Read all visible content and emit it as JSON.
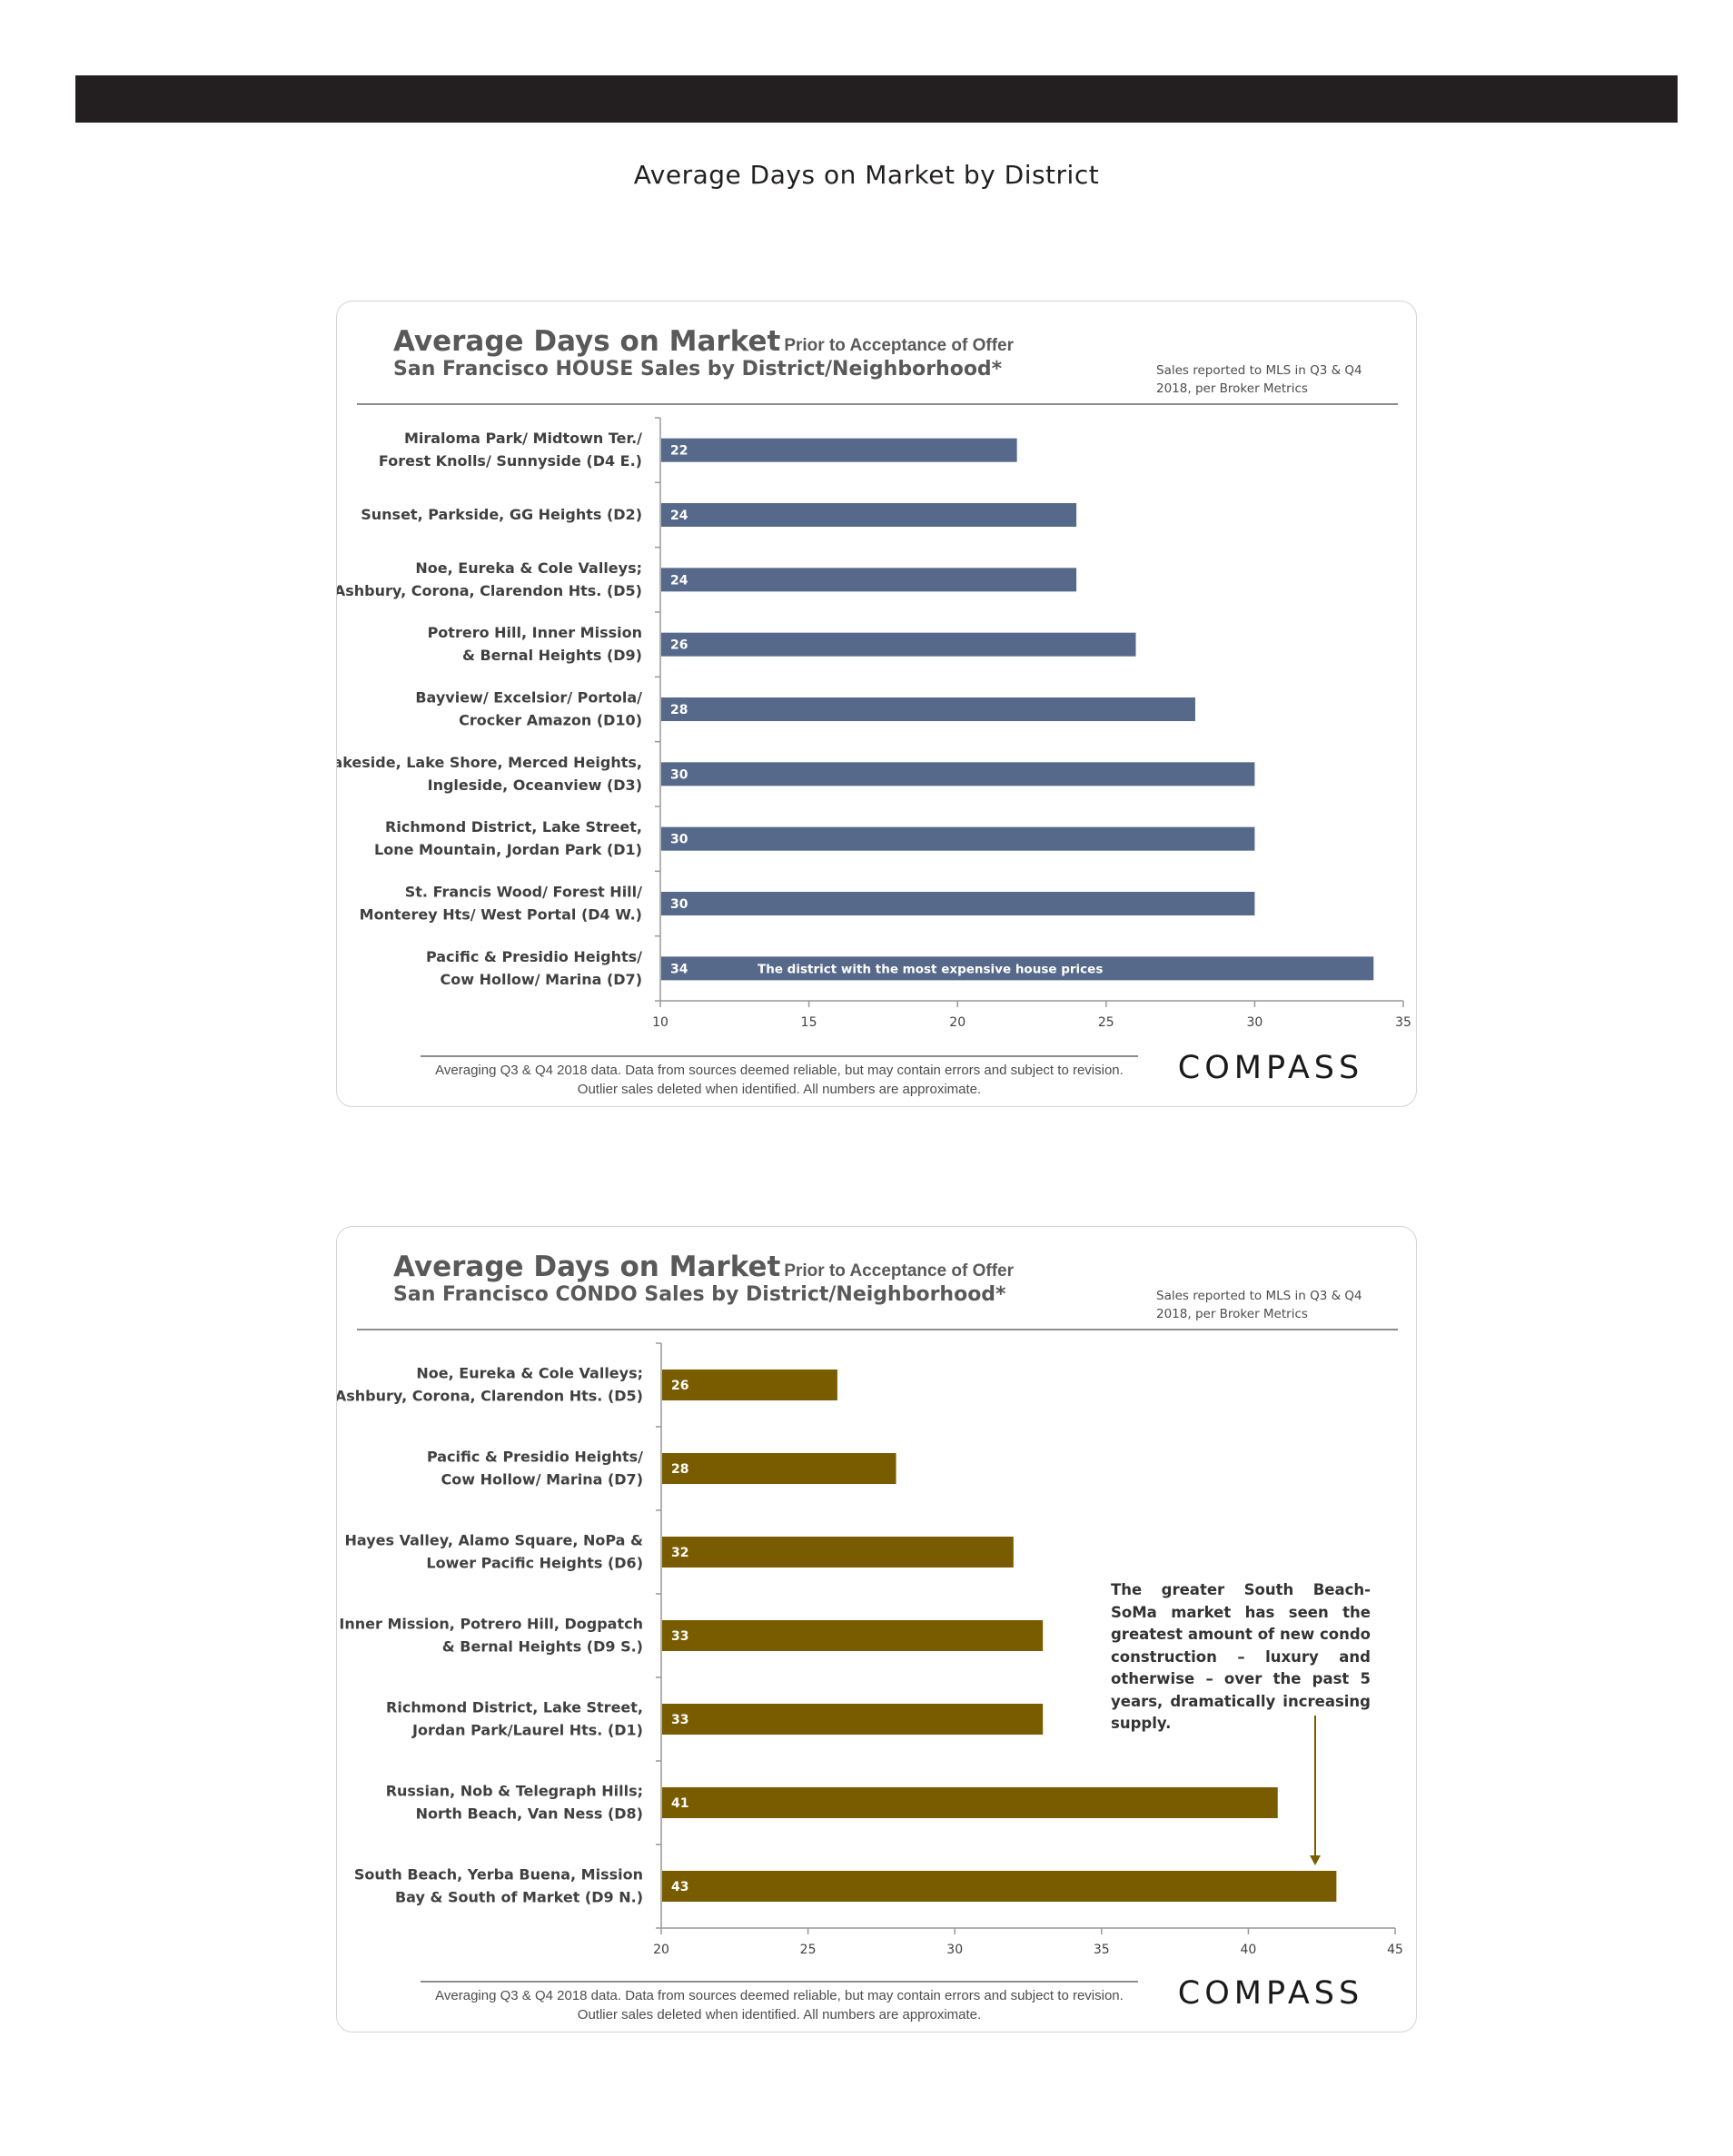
{
  "page": {
    "title": "Average Days on Market by District"
  },
  "colors": {
    "house_bar": "#56698a",
    "condo_bar": "#7a5c00",
    "axis": "#999999",
    "arrow": "#7a5c00"
  },
  "chart_data": [
    {
      "type": "bar",
      "orientation": "horizontal",
      "title": "Average Days on Market",
      "title_suffix": "Prior to Acceptance of Offer",
      "subtitle": "San Francisco HOUSE Sales by District/Neighborhood*",
      "source_note": "Sales reported to MLS in Q3 & Q4 2018, per Broker Metrics",
      "xlim": [
        10,
        35
      ],
      "x_ticks": [
        10,
        15,
        20,
        25,
        30,
        35
      ],
      "grid": false,
      "categories": [
        [
          "Miraloma Park/ Midtown Ter./",
          "Forest Knolls/ Sunnyside (D4 E.)"
        ],
        [
          "Sunset, Parkside, GG Heights (D2)"
        ],
        [
          "Noe, Eureka & Cole Valleys;",
          "Ashbury, Corona, Clarendon Hts. (D5)"
        ],
        [
          "Potrero Hill, Inner Mission",
          "& Bernal Heights (D9)"
        ],
        [
          "Bayview/ Excelsior/ Portola/",
          "Crocker Amazon (D10)"
        ],
        [
          "Lakeside, Lake Shore, Merced Heights,",
          "Ingleside, Oceanview (D3)"
        ],
        [
          "Richmond District, Lake Street,",
          "Lone Mountain, Jordan Park (D1)"
        ],
        [
          "St. Francis Wood/ Forest Hill/",
          "Monterey Hts/ West Portal (D4 W.)"
        ],
        [
          "Pacific & Presidio Heights/",
          "Cow Hollow/ Marina (D7)"
        ]
      ],
      "values": [
        22,
        24,
        24,
        26,
        28,
        30,
        30,
        30,
        34
      ],
      "annotations": [
        {
          "category_index": 8,
          "text": "The district with the most expensive house prices"
        }
      ],
      "footer": "Averaging Q3 & Q4 2018 data. Data from sources deemed reliable, but may contain errors and subject to revision. Outlier sales deleted when identified. All numbers are approximate.",
      "brand": "COMPASS"
    },
    {
      "type": "bar",
      "orientation": "horizontal",
      "title": "Average Days on Market",
      "title_suffix": "Prior to Acceptance of Offer",
      "subtitle": "San Francisco CONDO Sales by District/Neighborhood*",
      "source_note": "Sales reported to MLS in Q3 & Q4 2018, per Broker Metrics",
      "xlim": [
        20,
        45
      ],
      "x_ticks": [
        20,
        25,
        30,
        35,
        40,
        45
      ],
      "grid": false,
      "categories": [
        [
          "Noe, Eureka & Cole Valleys;",
          "Ashbury, Corona, Clarendon Hts. (D5)"
        ],
        [
          "Pacific & Presidio Heights/",
          "Cow Hollow/ Marina (D7)"
        ],
        [
          "Hayes Valley, Alamo Square, NoPa &",
          "Lower Pacific Heights (D6)"
        ],
        [
          "Inner Mission, Potrero Hill, Dogpatch",
          "& Bernal Heights (D9 S.)"
        ],
        [
          "Richmond District, Lake Street,",
          "Jordan Park/Laurel Hts. (D1)"
        ],
        [
          "Russian, Nob & Telegraph Hills;",
          "North Beach, Van Ness (D8)"
        ],
        [
          "South Beach, Yerba Buena, Mission",
          "Bay & South of Market (D9 N.)"
        ]
      ],
      "values": [
        26,
        28,
        32,
        33,
        33,
        41,
        43
      ],
      "annotations": [
        {
          "category_index": 6,
          "text": "The greater South Beach-SoMa market has seen the greatest amount of new condo construction – luxury and otherwise – over the past 5 years, dramatically increasing supply."
        }
      ],
      "footer": "Averaging Q3 & Q4 2018 data. Data from sources deemed reliable, but may contain errors and subject to revision. Outlier sales deleted when identified. All numbers are approximate.",
      "brand": "COMPASS"
    }
  ]
}
